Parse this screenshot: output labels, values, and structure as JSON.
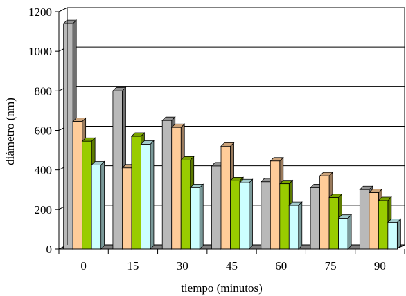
{
  "chart_data": {
    "type": "bar",
    "title": "",
    "xlabel": "tiempo (minutos)",
    "ylabel": "diámetro (nm)",
    "categories": [
      "0",
      "15",
      "30",
      "45",
      "60",
      "75",
      "90"
    ],
    "ylim": [
      0,
      1200
    ],
    "yticks": [
      "0",
      "200",
      "400",
      "600",
      "800",
      "1000",
      "1200"
    ],
    "grid": true,
    "legend": "none",
    "series": [
      {
        "values": [
          1140,
          800,
          650,
          420,
          340,
          310,
          300
        ],
        "color": "#b9b9b9"
      },
      {
        "values": [
          645,
          410,
          615,
          520,
          445,
          370,
          285
        ],
        "color": "#ffcc99"
      },
      {
        "values": [
          545,
          570,
          450,
          345,
          330,
          260,
          245
        ],
        "color": "#99cc00"
      },
      {
        "values": [
          425,
          530,
          310,
          335,
          220,
          155,
          135
        ],
        "color": "#ccffff"
      }
    ]
  }
}
